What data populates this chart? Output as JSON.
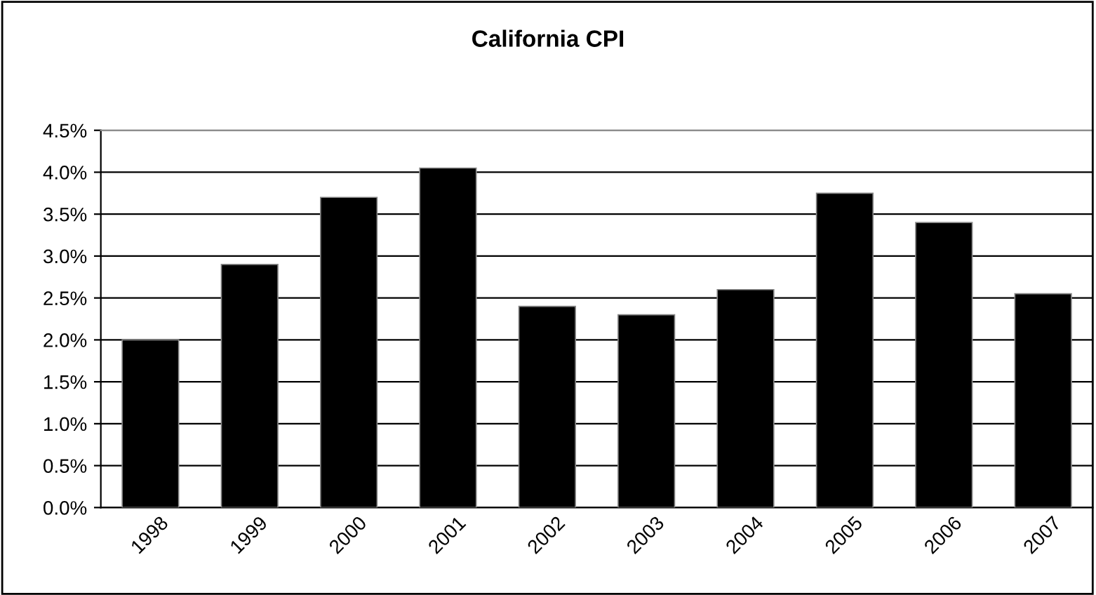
{
  "chart_data": {
    "type": "bar",
    "title": "California CPI",
    "categories": [
      "1998",
      "1999",
      "2000",
      "2001",
      "2002",
      "2003",
      "2004",
      "2005",
      "2006",
      "2007"
    ],
    "values": [
      2.0,
      2.9,
      3.7,
      4.05,
      2.4,
      2.3,
      2.6,
      3.75,
      3.4,
      2.55
    ],
    "color": "#000000",
    "ylim": [
      0,
      4.5
    ],
    "yticks": [
      {
        "value": 0,
        "label": "0.0%"
      },
      {
        "value": 0.5,
        "label": "0.5%"
      },
      {
        "value": 1,
        "label": "1.0%"
      },
      {
        "value": 1.5,
        "label": "1.5%"
      },
      {
        "value": 2,
        "label": "2.0%"
      },
      {
        "value": 2.5,
        "label": "2.5%"
      },
      {
        "value": 3,
        "label": "3.0%"
      },
      {
        "value": 3.5,
        "label": "3.5%"
      },
      {
        "value": 4,
        "label": "4.0%"
      },
      {
        "value": 4.5,
        "label": "4.5%"
      }
    ],
    "grid": "y",
    "legend": false
  }
}
